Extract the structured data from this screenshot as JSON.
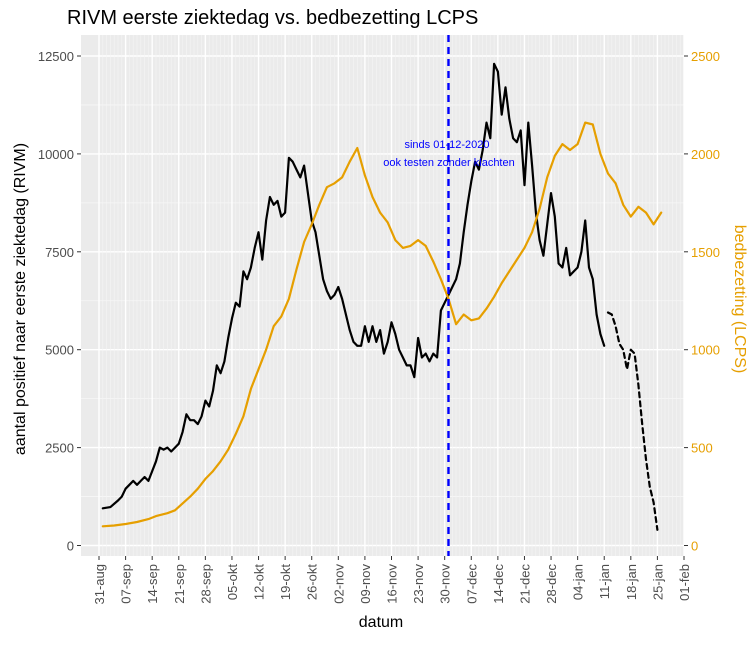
{
  "chart_data": {
    "type": "line",
    "title": "RIVM eerste ziektedag vs. bedbezetting LCPS",
    "xlabel": "datum",
    "ylabel_left": "aantal positief naar eerste ziektedag (RIVM)",
    "ylabel_right": "bedbezetting (LCPS)",
    "ylim_left": [
      0,
      12500
    ],
    "ylim_right": [
      0,
      2500
    ],
    "x_range": [
      "2020-08-31",
      "2021-02-01"
    ],
    "x_tick_labels": [
      "31-aug",
      "07-sep",
      "14-sep",
      "21-sep",
      "28-sep",
      "05-okt",
      "12-okt",
      "19-okt",
      "26-okt",
      "02-nov",
      "09-nov",
      "16-nov",
      "23-nov",
      "30-nov",
      "07-dec",
      "14-dec",
      "21-dec",
      "28-dec",
      "04-jan",
      "11-jan",
      "18-jan",
      "25-jan",
      "01-feb"
    ],
    "x_tick_dates": [
      "2020-08-31",
      "2020-09-07",
      "2020-09-14",
      "2020-09-21",
      "2020-09-28",
      "2020-10-05",
      "2020-10-12",
      "2020-10-19",
      "2020-10-26",
      "2020-11-02",
      "2020-11-09",
      "2020-11-16",
      "2020-11-23",
      "2020-11-30",
      "2020-12-07",
      "2020-12-14",
      "2020-12-21",
      "2020-12-28",
      "2021-01-04",
      "2021-01-11",
      "2021-01-18",
      "2021-01-25",
      "2021-02-01"
    ],
    "y_ticks_left": [
      0,
      2500,
      5000,
      7500,
      10000,
      12500
    ],
    "y_tick_labels_left": [
      "0",
      "2500",
      "5000",
      "7500",
      "10000",
      "12500"
    ],
    "y_ticks_right": [
      0,
      500,
      1000,
      1500,
      2000,
      2500
    ],
    "y_tick_labels_right": [
      "0",
      "500",
      "1000",
      "1500",
      "2000",
      "2500"
    ],
    "grid": true,
    "background": "#ebebeb",
    "colors": {
      "rivm": "#000000",
      "lcps": "#e69f00",
      "marker": "#0000ff"
    },
    "vline": {
      "date": "2020-12-01",
      "style": "dashed"
    },
    "annotation": {
      "lines": [
        "sinds 01-12-2020",
        "ook testen zonder klachten"
      ]
    },
    "series": [
      {
        "axis": "left",
        "style": "solid",
        "points": [
          [
            "2020-09-01",
            950
          ],
          [
            "2020-09-03",
            980
          ],
          [
            "2020-09-05",
            1150
          ],
          [
            "2020-09-06",
            1250
          ],
          [
            "2020-09-07",
            1450
          ],
          [
            "2020-09-08",
            1550
          ],
          [
            "2020-09-09",
            1650
          ],
          [
            "2020-09-10",
            1550
          ],
          [
            "2020-09-11",
            1650
          ],
          [
            "2020-09-12",
            1750
          ],
          [
            "2020-09-13",
            1650
          ],
          [
            "2020-09-14",
            1900
          ],
          [
            "2020-09-15",
            2150
          ],
          [
            "2020-09-16",
            2500
          ],
          [
            "2020-09-17",
            2450
          ],
          [
            "2020-09-18",
            2500
          ],
          [
            "2020-09-19",
            2400
          ],
          [
            "2020-09-20",
            2500
          ],
          [
            "2020-09-21",
            2600
          ],
          [
            "2020-09-22",
            2900
          ],
          [
            "2020-09-23",
            3350
          ],
          [
            "2020-09-24",
            3200
          ],
          [
            "2020-09-25",
            3200
          ],
          [
            "2020-09-26",
            3100
          ],
          [
            "2020-09-27",
            3300
          ],
          [
            "2020-09-28",
            3700
          ],
          [
            "2020-09-29",
            3550
          ],
          [
            "2020-09-30",
            3950
          ],
          [
            "2020-10-01",
            4600
          ],
          [
            "2020-10-02",
            4400
          ],
          [
            "2020-10-03",
            4700
          ],
          [
            "2020-10-04",
            5300
          ],
          [
            "2020-10-05",
            5800
          ],
          [
            "2020-10-06",
            6200
          ],
          [
            "2020-10-07",
            6100
          ],
          [
            "2020-10-08",
            7000
          ],
          [
            "2020-10-09",
            6800
          ],
          [
            "2020-10-10",
            7100
          ],
          [
            "2020-10-11",
            7600
          ],
          [
            "2020-10-12",
            8000
          ],
          [
            "2020-10-13",
            7300
          ],
          [
            "2020-10-14",
            8300
          ],
          [
            "2020-10-15",
            8900
          ],
          [
            "2020-10-16",
            8700
          ],
          [
            "2020-10-17",
            8800
          ],
          [
            "2020-10-18",
            8400
          ],
          [
            "2020-10-19",
            8500
          ],
          [
            "2020-10-20",
            9900
          ],
          [
            "2020-10-21",
            9800
          ],
          [
            "2020-10-22",
            9600
          ],
          [
            "2020-10-23",
            9400
          ],
          [
            "2020-10-24",
            9700
          ],
          [
            "2020-10-25",
            9000
          ],
          [
            "2020-10-26",
            8300
          ],
          [
            "2020-10-27",
            8000
          ],
          [
            "2020-10-28",
            7400
          ],
          [
            "2020-10-29",
            6800
          ],
          [
            "2020-10-30",
            6500
          ],
          [
            "2020-10-31",
            6300
          ],
          [
            "2020-11-01",
            6400
          ],
          [
            "2020-11-02",
            6600
          ],
          [
            "2020-11-03",
            6300
          ],
          [
            "2020-11-04",
            5900
          ],
          [
            "2020-11-05",
            5500
          ],
          [
            "2020-11-06",
            5200
          ],
          [
            "2020-11-07",
            5100
          ],
          [
            "2020-11-08",
            5100
          ],
          [
            "2020-11-09",
            5600
          ],
          [
            "2020-11-10",
            5200
          ],
          [
            "2020-11-11",
            5600
          ],
          [
            "2020-11-12",
            5200
          ],
          [
            "2020-11-13",
            5500
          ],
          [
            "2020-11-14",
            4900
          ],
          [
            "2020-11-15",
            5200
          ],
          [
            "2020-11-16",
            5700
          ],
          [
            "2020-11-17",
            5400
          ],
          [
            "2020-11-18",
            5000
          ],
          [
            "2020-11-19",
            4800
          ],
          [
            "2020-11-20",
            4600
          ],
          [
            "2020-11-21",
            4600
          ],
          [
            "2020-11-22",
            4300
          ],
          [
            "2020-11-23",
            5300
          ],
          [
            "2020-11-24",
            4800
          ],
          [
            "2020-11-25",
            4900
          ],
          [
            "2020-11-26",
            4700
          ],
          [
            "2020-11-27",
            4900
          ],
          [
            "2020-11-28",
            4800
          ],
          [
            "2020-11-29",
            6000
          ],
          [
            "2020-11-30",
            6200
          ],
          [
            "2020-12-01",
            6400
          ],
          [
            "2020-12-02",
            6600
          ],
          [
            "2020-12-03",
            6800
          ],
          [
            "2020-12-04",
            7200
          ],
          [
            "2020-12-05",
            8000
          ],
          [
            "2020-12-06",
            8700
          ],
          [
            "2020-12-07",
            9300
          ],
          [
            "2020-12-08",
            9800
          ],
          [
            "2020-12-09",
            9600
          ],
          [
            "2020-12-10",
            10100
          ],
          [
            "2020-12-11",
            10800
          ],
          [
            "2020-12-12",
            10400
          ],
          [
            "2020-12-13",
            12300
          ],
          [
            "2020-12-14",
            12100
          ],
          [
            "2020-12-15",
            11000
          ],
          [
            "2020-12-16",
            11700
          ],
          [
            "2020-12-17",
            10900
          ],
          [
            "2020-12-18",
            10400
          ],
          [
            "2020-12-19",
            10300
          ],
          [
            "2020-12-20",
            10600
          ],
          [
            "2020-12-21",
            9200
          ],
          [
            "2020-12-22",
            10800
          ],
          [
            "2020-12-23",
            9700
          ],
          [
            "2020-12-24",
            8500
          ],
          [
            "2020-12-25",
            7800
          ],
          [
            "2020-12-26",
            7400
          ],
          [
            "2020-12-27",
            8200
          ],
          [
            "2020-12-28",
            9000
          ],
          [
            "2020-12-29",
            8400
          ],
          [
            "2020-12-30",
            7200
          ],
          [
            "2020-12-31",
            7100
          ],
          [
            "2021-01-01",
            7600
          ],
          [
            "2021-01-02",
            6900
          ],
          [
            "2021-01-03",
            7000
          ],
          [
            "2021-01-04",
            7100
          ],
          [
            "2021-01-05",
            7500
          ],
          [
            "2021-01-06",
            8300
          ],
          [
            "2021-01-07",
            7100
          ],
          [
            "2021-01-08",
            6800
          ],
          [
            "2021-01-09",
            5900
          ],
          [
            "2021-01-10",
            5400
          ],
          [
            "2021-01-11",
            5100
          ]
        ]
      },
      {
        "axis": "left",
        "style": "dashed",
        "points": [
          [
            "2021-01-12",
            5950
          ],
          [
            "2021-01-13",
            5900
          ],
          [
            "2021-01-14",
            5600
          ],
          [
            "2021-01-15",
            5150
          ],
          [
            "2021-01-16",
            5000
          ],
          [
            "2021-01-17",
            4500
          ],
          [
            "2021-01-18",
            5000
          ],
          [
            "2021-01-19",
            4900
          ],
          [
            "2021-01-20",
            4100
          ],
          [
            "2021-01-21",
            3100
          ],
          [
            "2021-01-22",
            2200
          ],
          [
            "2021-01-23",
            1500
          ],
          [
            "2021-01-24",
            1100
          ],
          [
            "2021-01-25",
            400
          ]
        ]
      },
      {
        "axis": "right",
        "style": "solid",
        "points": [
          [
            "2020-09-01",
            98
          ],
          [
            "2020-09-04",
            102
          ],
          [
            "2020-09-07",
            110
          ],
          [
            "2020-09-10",
            120
          ],
          [
            "2020-09-13",
            135
          ],
          [
            "2020-09-15",
            150
          ],
          [
            "2020-09-18",
            165
          ],
          [
            "2020-09-20",
            180
          ],
          [
            "2020-09-22",
            215
          ],
          [
            "2020-09-24",
            250
          ],
          [
            "2020-09-26",
            290
          ],
          [
            "2020-09-28",
            340
          ],
          [
            "2020-09-30",
            380
          ],
          [
            "2020-10-02",
            430
          ],
          [
            "2020-10-04",
            490
          ],
          [
            "2020-10-06",
            570
          ],
          [
            "2020-10-08",
            660
          ],
          [
            "2020-10-10",
            800
          ],
          [
            "2020-10-12",
            900
          ],
          [
            "2020-10-14",
            1000
          ],
          [
            "2020-10-16",
            1120
          ],
          [
            "2020-10-18",
            1170
          ],
          [
            "2020-10-20",
            1260
          ],
          [
            "2020-10-22",
            1410
          ],
          [
            "2020-10-24",
            1550
          ],
          [
            "2020-10-26",
            1640
          ],
          [
            "2020-10-28",
            1740
          ],
          [
            "2020-10-30",
            1830
          ],
          [
            "2020-11-01",
            1850
          ],
          [
            "2020-11-03",
            1880
          ],
          [
            "2020-11-05",
            1960
          ],
          [
            "2020-11-07",
            2030
          ],
          [
            "2020-11-09",
            1890
          ],
          [
            "2020-11-11",
            1780
          ],
          [
            "2020-11-13",
            1700
          ],
          [
            "2020-11-15",
            1650
          ],
          [
            "2020-11-17",
            1560
          ],
          [
            "2020-11-19",
            1520
          ],
          [
            "2020-11-21",
            1530
          ],
          [
            "2020-11-23",
            1560
          ],
          [
            "2020-11-25",
            1530
          ],
          [
            "2020-11-27",
            1450
          ],
          [
            "2020-11-29",
            1360
          ],
          [
            "2020-12-01",
            1260
          ],
          [
            "2020-12-03",
            1130
          ],
          [
            "2020-12-05",
            1180
          ],
          [
            "2020-12-07",
            1150
          ],
          [
            "2020-12-09",
            1160
          ],
          [
            "2020-12-11",
            1210
          ],
          [
            "2020-12-13",
            1270
          ],
          [
            "2020-12-15",
            1340
          ],
          [
            "2020-12-17",
            1400
          ],
          [
            "2020-12-19",
            1460
          ],
          [
            "2020-12-21",
            1520
          ],
          [
            "2020-12-23",
            1600
          ],
          [
            "2020-12-25",
            1720
          ],
          [
            "2020-12-27",
            1880
          ],
          [
            "2020-12-29",
            1990
          ],
          [
            "2020-12-31",
            2050
          ],
          [
            "2021-01-02",
            2020
          ],
          [
            "2021-01-04",
            2050
          ],
          [
            "2021-01-06",
            2160
          ],
          [
            "2021-01-08",
            2150
          ],
          [
            "2021-01-10",
            2000
          ],
          [
            "2021-01-12",
            1900
          ],
          [
            "2021-01-14",
            1850
          ],
          [
            "2021-01-16",
            1740
          ],
          [
            "2021-01-18",
            1680
          ],
          [
            "2021-01-20",
            1730
          ],
          [
            "2021-01-22",
            1700
          ],
          [
            "2021-01-24",
            1640
          ],
          [
            "2021-01-26",
            1700
          ]
        ]
      }
    ]
  }
}
